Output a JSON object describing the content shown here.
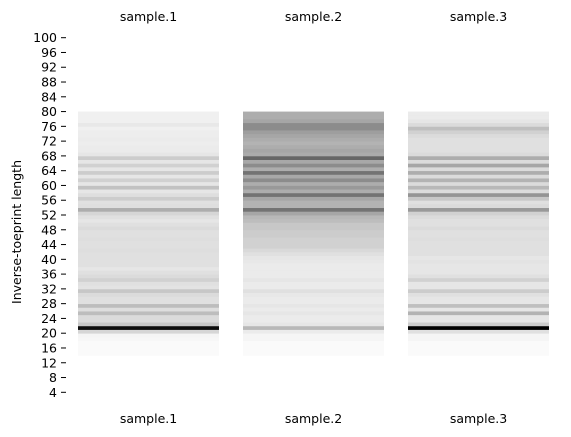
{
  "chart_data": {
    "type": "heatmap",
    "ylabel": "Inverse-toeprint length",
    "yticks": [
      4,
      8,
      12,
      16,
      20,
      24,
      28,
      32,
      36,
      40,
      44,
      48,
      52,
      56,
      60,
      64,
      68,
      72,
      76,
      80,
      84,
      88,
      92,
      96,
      100
    ],
    "ylim": [
      3,
      101
    ],
    "colormap": "white-to-black (greyscale, higher intensity = darker)",
    "samples": [
      {
        "name": "sample.1",
        "y_range": [
          14,
          80
        ],
        "intensity": [
          0.02,
          0.02,
          0.02,
          0.02,
          0.03,
          0.04,
          0.16,
          0.95,
          0.22,
          0.14,
          0.14,
          0.26,
          0.13,
          0.26,
          0.12,
          0.12,
          0.14,
          0.22,
          0.11,
          0.12,
          0.18,
          0.14,
          0.12,
          0.1,
          0.12,
          0.12,
          0.12,
          0.12,
          0.13,
          0.12,
          0.12,
          0.13,
          0.12,
          0.12,
          0.14,
          0.12,
          0.1,
          0.12,
          0.16,
          0.32,
          0.13,
          0.12,
          0.2,
          0.13,
          0.1,
          0.24,
          0.1,
          0.18,
          0.1,
          0.2,
          0.1,
          0.18,
          0.1,
          0.2,
          0.1,
          0.08,
          0.08,
          0.07,
          0.08,
          0.07,
          0.07,
          0.06,
          0.09,
          0.06,
          0.06,
          0.06
        ]
      },
      {
        "name": "sample.2",
        "y_range": [
          14,
          80
        ],
        "intensity": [
          0.02,
          0.02,
          0.02,
          0.02,
          0.04,
          0.04,
          0.08,
          0.28,
          0.1,
          0.08,
          0.08,
          0.1,
          0.08,
          0.1,
          0.08,
          0.08,
          0.09,
          0.12,
          0.08,
          0.08,
          0.1,
          0.08,
          0.08,
          0.08,
          0.08,
          0.09,
          0.1,
          0.12,
          0.15,
          0.18,
          0.18,
          0.18,
          0.2,
          0.2,
          0.22,
          0.22,
          0.26,
          0.28,
          0.35,
          0.55,
          0.3,
          0.3,
          0.35,
          0.55,
          0.32,
          0.4,
          0.32,
          0.45,
          0.34,
          0.55,
          0.32,
          0.45,
          0.34,
          0.6,
          0.33,
          0.35,
          0.32,
          0.3,
          0.32,
          0.35,
          0.38,
          0.45,
          0.45,
          0.35,
          0.32,
          0.32
        ]
      },
      {
        "name": "sample.3",
        "y_range": [
          14,
          80
        ],
        "intensity": [
          0.02,
          0.02,
          0.02,
          0.02,
          0.04,
          0.04,
          0.12,
          1.0,
          0.2,
          0.1,
          0.1,
          0.3,
          0.1,
          0.25,
          0.1,
          0.1,
          0.12,
          0.2,
          0.1,
          0.1,
          0.18,
          0.12,
          0.1,
          0.1,
          0.1,
          0.11,
          0.1,
          0.12,
          0.12,
          0.12,
          0.12,
          0.13,
          0.12,
          0.12,
          0.14,
          0.12,
          0.12,
          0.14,
          0.18,
          0.4,
          0.14,
          0.12,
          0.22,
          0.42,
          0.14,
          0.28,
          0.14,
          0.3,
          0.14,
          0.32,
          0.14,
          0.35,
          0.14,
          0.32,
          0.14,
          0.12,
          0.12,
          0.12,
          0.12,
          0.14,
          0.18,
          0.25,
          0.14,
          0.1,
          0.08,
          0.08
        ]
      }
    ]
  }
}
